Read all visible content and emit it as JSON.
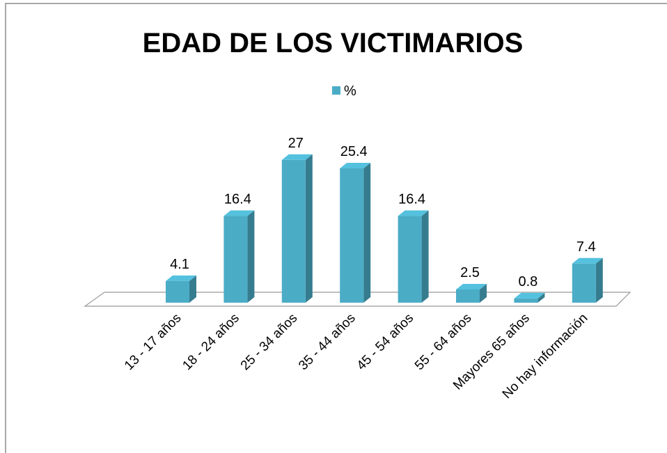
{
  "chart_data": {
    "type": "bar3d",
    "title": "EDAD DE LOS VICTIMARIOS",
    "categories": [
      "13 - 17 años",
      "18 - 24 años",
      "25 - 34 años",
      "35 - 44 años",
      "45 - 54 años",
      "55 - 64 años",
      "Mayores 65 años",
      "No hay información"
    ],
    "series": [
      {
        "name": "%",
        "color": "#4bacc6",
        "values": [
          4.1,
          16.4,
          27,
          25.4,
          16.4,
          2.5,
          0.8,
          7.4
        ]
      }
    ],
    "legend": "top"
  }
}
